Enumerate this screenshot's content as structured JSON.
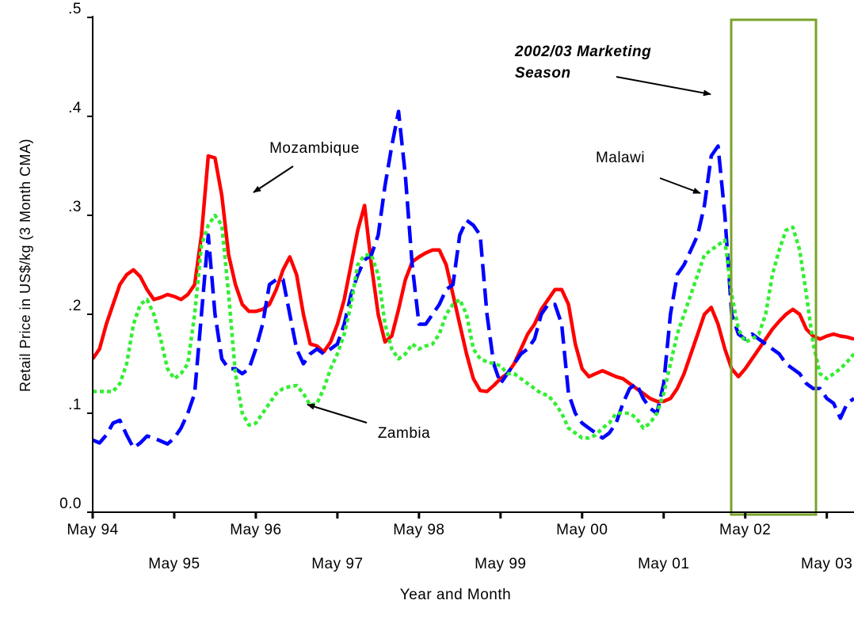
{
  "chart_data": {
    "type": "line",
    "x_label": "Year and Month",
    "y_label": "Retail Price in US$/kg (3 Month CMA)",
    "xlim": [
      0,
      112
    ],
    "xticks": [
      {
        "value": 0,
        "label": "May 94"
      },
      {
        "value": 12,
        "label": "May 95"
      },
      {
        "value": 24,
        "label": "May 96"
      },
      {
        "value": 36,
        "label": "May 97"
      },
      {
        "value": 48,
        "label": "May 98"
      },
      {
        "value": 60,
        "label": "May 99"
      },
      {
        "value": 72,
        "label": "May 00"
      },
      {
        "value": 84,
        "label": "May 01"
      },
      {
        "value": 96,
        "label": "May 02"
      },
      {
        "value": 108,
        "label": "May 03"
      }
    ],
    "ylim": [
      0,
      0.5
    ],
    "yticks": [
      {
        "value": 0,
        "label": "0.0"
      },
      {
        "value": 0.1,
        "label": ".1"
      },
      {
        "value": 0.2,
        "label": ".2"
      },
      {
        "value": 0.3,
        "label": ".3"
      },
      {
        "value": 0.4,
        "label": ".4"
      },
      {
        "value": 0.5,
        "label": ".5"
      }
    ],
    "grid": false,
    "annotations": [
      {
        "text": "Mozambique"
      },
      {
        "text": "Malawi"
      },
      {
        "text": "Zambia"
      },
      {
        "text": "2002/03 Marketing"
      },
      {
        "text": "Season"
      }
    ],
    "x": [
      0,
      1,
      2,
      3,
      4,
      5,
      6,
      7,
      8,
      9,
      10,
      11,
      12,
      13,
      14,
      15,
      16,
      17,
      18,
      19,
      20,
      21,
      22,
      23,
      24,
      25,
      26,
      27,
      28,
      29,
      30,
      31,
      32,
      33,
      34,
      35,
      36,
      37,
      38,
      39,
      40,
      41,
      42,
      43,
      44,
      45,
      46,
      47,
      48,
      49,
      50,
      51,
      52,
      53,
      54,
      55,
      56,
      57,
      58,
      59,
      60,
      61,
      62,
      63,
      64,
      65,
      66,
      67,
      68,
      69,
      70,
      71,
      72,
      73,
      74,
      75,
      76,
      77,
      78,
      79,
      80,
      81,
      82,
      83,
      84,
      85,
      86,
      87,
      88,
      89,
      90,
      91,
      92,
      93,
      94,
      95,
      96,
      97,
      98,
      99,
      100,
      101,
      102,
      103,
      104,
      105,
      106,
      107,
      108,
      109,
      110,
      111,
      112
    ],
    "series": [
      {
        "name": "Mozambique",
        "color": "#ff0000",
        "style": "solid",
        "values": [
          0.155,
          0.165,
          0.19,
          0.21,
          0.23,
          0.24,
          0.245,
          0.238,
          0.225,
          0.215,
          0.217,
          0.22,
          0.218,
          0.215,
          0.22,
          0.23,
          0.28,
          0.36,
          0.358,
          0.32,
          0.26,
          0.23,
          0.21,
          0.203,
          0.203,
          0.205,
          0.21,
          0.225,
          0.245,
          0.258,
          0.24,
          0.2,
          0.17,
          0.168,
          0.162,
          0.172,
          0.19,
          0.215,
          0.25,
          0.285,
          0.31,
          0.25,
          0.2,
          0.172,
          0.178,
          0.205,
          0.235,
          0.253,
          0.258,
          0.262,
          0.265,
          0.265,
          0.25,
          0.22,
          0.19,
          0.16,
          0.135,
          0.123,
          0.122,
          0.128,
          0.135,
          0.14,
          0.15,
          0.165,
          0.18,
          0.19,
          0.205,
          0.215,
          0.225,
          0.225,
          0.21,
          0.17,
          0.145,
          0.137,
          0.14,
          0.143,
          0.14,
          0.137,
          0.135,
          0.13,
          0.125,
          0.12,
          0.115,
          0.112,
          0.112,
          0.115,
          0.125,
          0.14,
          0.16,
          0.18,
          0.2,
          0.207,
          0.19,
          0.165,
          0.145,
          0.137,
          0.145,
          0.155,
          0.165,
          0.175,
          0.185,
          0.193,
          0.2,
          0.205,
          0.2,
          0.185,
          0.178,
          0.175,
          0.178,
          0.18,
          0.178,
          0.177,
          0.175
        ]
      },
      {
        "name": "Malawi",
        "color": "#0000ff",
        "style": "dashed",
        "values": [
          0.073,
          0.07,
          0.078,
          0.09,
          0.093,
          0.078,
          0.065,
          0.07,
          0.077,
          0.075,
          0.072,
          0.069,
          0.075,
          0.085,
          0.1,
          0.12,
          0.2,
          0.28,
          0.2,
          0.155,
          0.145,
          0.145,
          0.14,
          0.145,
          0.165,
          0.19,
          0.23,
          0.235,
          0.235,
          0.2,
          0.165,
          0.15,
          0.16,
          0.165,
          0.16,
          0.165,
          0.17,
          0.19,
          0.22,
          0.24,
          0.255,
          0.26,
          0.28,
          0.33,
          0.37,
          0.405,
          0.34,
          0.25,
          0.19,
          0.19,
          0.2,
          0.21,
          0.225,
          0.23,
          0.28,
          0.295,
          0.29,
          0.28,
          0.2,
          0.15,
          0.13,
          0.14,
          0.15,
          0.16,
          0.165,
          0.175,
          0.2,
          0.21,
          0.21,
          0.19,
          0.12,
          0.1,
          0.09,
          0.085,
          0.08,
          0.075,
          0.08,
          0.09,
          0.11,
          0.125,
          0.13,
          0.115,
          0.105,
          0.1,
          0.13,
          0.2,
          0.24,
          0.25,
          0.265,
          0.28,
          0.31,
          0.36,
          0.37,
          0.3,
          0.2,
          0.18,
          0.175,
          0.18,
          0.175,
          0.17,
          0.165,
          0.16,
          0.15,
          0.145,
          0.14,
          0.13,
          0.125,
          0.125,
          0.115,
          0.11,
          0.095,
          0.11,
          0.115
        ]
      },
      {
        "name": "Zambia",
        "color": "#33ee33",
        "style": "dotted",
        "values": [
          0.122,
          0.122,
          0.122,
          0.122,
          0.13,
          0.15,
          0.19,
          0.21,
          0.215,
          0.2,
          0.175,
          0.145,
          0.135,
          0.14,
          0.15,
          0.2,
          0.27,
          0.29,
          0.3,
          0.29,
          0.22,
          0.14,
          0.1,
          0.088,
          0.09,
          0.1,
          0.11,
          0.12,
          0.125,
          0.127,
          0.128,
          0.12,
          0.108,
          0.11,
          0.125,
          0.145,
          0.16,
          0.18,
          0.21,
          0.25,
          0.26,
          0.26,
          0.24,
          0.19,
          0.165,
          0.155,
          0.16,
          0.17,
          0.165,
          0.168,
          0.17,
          0.18,
          0.2,
          0.21,
          0.215,
          0.2,
          0.165,
          0.155,
          0.152,
          0.15,
          0.148,
          0.14,
          0.14,
          0.135,
          0.13,
          0.125,
          0.12,
          0.118,
          0.11,
          0.1,
          0.085,
          0.08,
          0.075,
          0.075,
          0.078,
          0.085,
          0.09,
          0.1,
          0.1,
          0.1,
          0.095,
          0.085,
          0.09,
          0.1,
          0.12,
          0.15,
          0.18,
          0.2,
          0.22,
          0.24,
          0.26,
          0.265,
          0.27,
          0.275,
          0.22,
          0.185,
          0.172,
          0.175,
          0.18,
          0.2,
          0.24,
          0.265,
          0.285,
          0.288,
          0.265,
          0.22,
          0.17,
          0.14,
          0.135,
          0.14,
          0.145,
          0.152,
          0.16
        ]
      }
    ]
  }
}
